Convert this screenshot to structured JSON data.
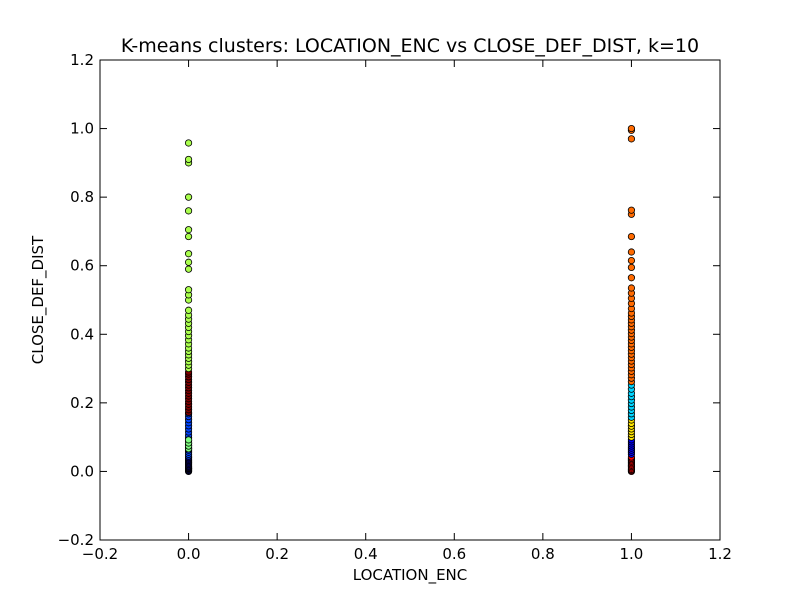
{
  "chart_data": {
    "type": "scatter",
    "title": "K-means clusters: LOCATION_ENC vs CLOSE_DEF_DIST, k=10",
    "xlabel": "LOCATION_ENC",
    "ylabel": "CLOSE_DEF_DIST",
    "xlim": [
      -0.2,
      1.2
    ],
    "ylim": [
      -0.2,
      1.2
    ],
    "xticks": [
      -0.2,
      0.0,
      0.2,
      0.4,
      0.6,
      0.8,
      1.0,
      1.2
    ],
    "yticks": [
      -0.2,
      0.0,
      0.2,
      0.4,
      0.6,
      0.8,
      1.0,
      1.2
    ],
    "xtick_labels": [
      "−0.2",
      "0.0",
      "0.2",
      "0.4",
      "0.6",
      "0.8",
      "1.0",
      "1.2"
    ],
    "ytick_labels": [
      "−0.2",
      "0.0",
      "0.2",
      "0.4",
      "0.6",
      "0.8",
      "1.0",
      "1.2"
    ],
    "grid": false,
    "clusters": [
      {
        "color": "#00007f",
        "x": 0.0,
        "y": [
          0.0,
          0.002,
          0.005,
          0.008,
          0.01,
          0.013,
          0.016,
          0.02,
          0.024,
          0.028,
          0.032,
          0.036,
          0.04
        ]
      },
      {
        "color": "#0044ff",
        "x": 0.0,
        "y": [
          0.045,
          0.05,
          0.056,
          0.062,
          0.068,
          0.075,
          0.082,
          0.09,
          0.098,
          0.106,
          0.115,
          0.124,
          0.133,
          0.142,
          0.151,
          0.16,
          0.168
        ]
      },
      {
        "color": "#7fff7f",
        "x": 0.0,
        "y": [
          0.066,
          0.074,
          0.083,
          0.092
        ]
      },
      {
        "color": "#7f0000",
        "x": 0.0,
        "y": [
          0.172,
          0.18,
          0.188,
          0.196,
          0.204,
          0.212,
          0.22,
          0.228,
          0.236,
          0.244,
          0.252,
          0.26,
          0.268,
          0.276,
          0.284,
          0.29
        ]
      },
      {
        "color": "#aaff4d",
        "x": 0.0,
        "y": [
          0.3,
          0.31,
          0.32,
          0.33,
          0.34,
          0.35,
          0.36,
          0.372,
          0.384,
          0.396,
          0.408,
          0.42,
          0.432,
          0.444,
          0.456,
          0.47,
          0.5,
          0.515,
          0.53,
          0.59,
          0.61,
          0.635,
          0.685,
          0.705,
          0.76,
          0.8,
          0.9,
          0.91,
          0.958
        ]
      },
      {
        "color": "#ff0000",
        "x": 1.0,
        "y": [
          0.0,
          0.003,
          0.006,
          0.01,
          0.014,
          0.018,
          0.022,
          0.026,
          0.03,
          0.034,
          0.038,
          0.042
        ]
      },
      {
        "color": "#0000ff",
        "x": 1.0,
        "y": [
          0.05,
          0.056,
          0.062,
          0.068,
          0.074,
          0.08,
          0.086,
          0.092
        ]
      },
      {
        "color": "#ffe600",
        "x": 1.0,
        "y": [
          0.1,
          0.108,
          0.116,
          0.124,
          0.132,
          0.14,
          0.15
        ]
      },
      {
        "color": "#00d4ff",
        "x": 1.0,
        "y": [
          0.158,
          0.168,
          0.178,
          0.188,
          0.198,
          0.208,
          0.218,
          0.228,
          0.24,
          0.252
        ]
      },
      {
        "color": "#ff6a00",
        "x": 1.0,
        "y": [
          0.262,
          0.272,
          0.282,
          0.292,
          0.302,
          0.312,
          0.322,
          0.332,
          0.342,
          0.352,
          0.362,
          0.372,
          0.382,
          0.392,
          0.402,
          0.412,
          0.422,
          0.432,
          0.442,
          0.452,
          0.462,
          0.475,
          0.49,
          0.505,
          0.52,
          0.535,
          0.565,
          0.595,
          0.615,
          0.64,
          0.685,
          0.75,
          0.762,
          0.97,
          0.995,
          1.0
        ]
      }
    ]
  }
}
